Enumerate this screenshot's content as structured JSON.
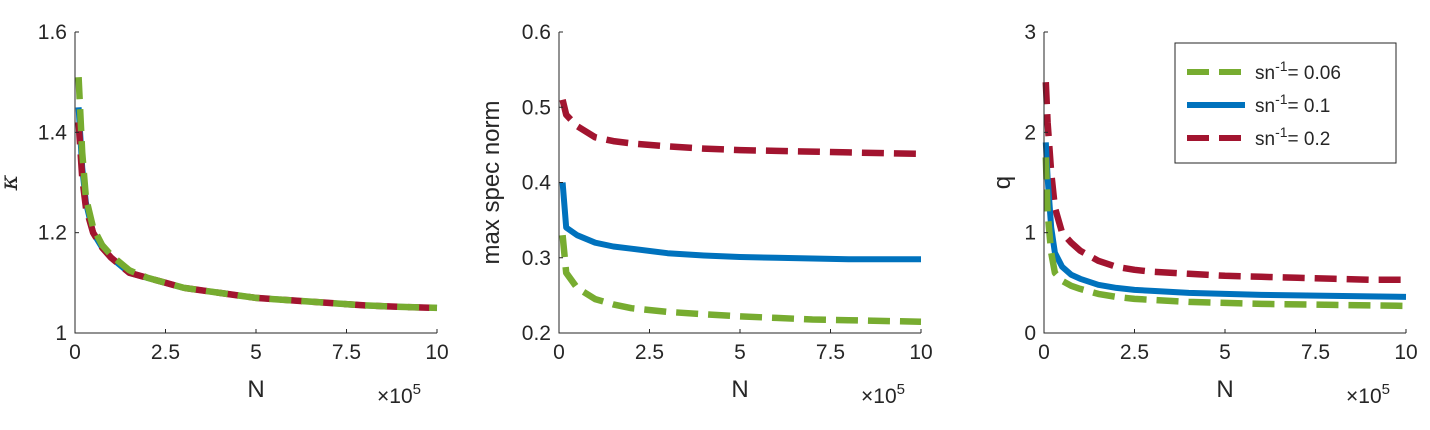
{
  "colors": {
    "green": "#77AC30",
    "blue": "#0072BD",
    "red": "#A2142F",
    "axis": "#262626"
  },
  "legend": [
    {
      "label_prefix": "sn",
      "sup": "-1",
      "label_suffix": "= 0.06",
      "color": "#77AC30",
      "style": "dashed"
    },
    {
      "label_prefix": "sn",
      "sup": "-1",
      "label_suffix": "= 0.1",
      "color": "#0072BD",
      "style": "solid"
    },
    {
      "label_prefix": "sn",
      "sup": "-1",
      "label_suffix": "= 0.2",
      "color": "#A2142F",
      "style": "dashed"
    }
  ],
  "chart_data": [
    {
      "type": "line",
      "xlabel": "N",
      "ylabel": "κ",
      "x_exponent_label": "×10",
      "x_exponent": "5",
      "xlim": [
        0,
        10
      ],
      "ylim": [
        1,
        1.6
      ],
      "xticks": [
        0,
        2.5,
        5,
        7.5,
        10
      ],
      "xtick_labels": [
        "0",
        "2.5",
        "5",
        "7.5",
        "10"
      ],
      "yticks": [
        1,
        1.2,
        1.4,
        1.6
      ],
      "ytick_labels": [
        "1",
        "1.2",
        "1.4",
        "1.6"
      ],
      "x": [
        0.1,
        0.2,
        0.3,
        0.5,
        0.75,
        1,
        1.5,
        2,
        2.5,
        3,
        4,
        5,
        6,
        7,
        8,
        9,
        10
      ],
      "series": [
        {
          "color": "#0072BD",
          "style": "solid",
          "values": [
            1.45,
            1.33,
            1.26,
            1.2,
            1.17,
            1.15,
            1.12,
            1.11,
            1.1,
            1.09,
            1.08,
            1.07,
            1.065,
            1.06,
            1.055,
            1.052,
            1.05
          ]
        },
        {
          "color": "#A2142F",
          "style": "dashed",
          "values": [
            1.42,
            1.31,
            1.25,
            1.2,
            1.17,
            1.15,
            1.12,
            1.11,
            1.1,
            1.09,
            1.08,
            1.07,
            1.065,
            1.06,
            1.055,
            1.052,
            1.05
          ]
        },
        {
          "color": "#77AC30",
          "style": "dashed",
          "values": [
            1.51,
            1.36,
            1.27,
            1.21,
            1.175,
            1.155,
            1.125,
            1.11,
            1.1,
            1.09,
            1.08,
            1.07,
            1.065,
            1.06,
            1.055,
            1.052,
            1.05
          ]
        }
      ]
    },
    {
      "type": "line",
      "xlabel": "N",
      "ylabel": "max spec norm",
      "x_exponent_label": "×10",
      "x_exponent": "5",
      "xlim": [
        0,
        10
      ],
      "ylim": [
        0.2,
        0.6
      ],
      "xticks": [
        0,
        2.5,
        5,
        7.5,
        10
      ],
      "xtick_labels": [
        "0",
        "2.5",
        "5",
        "7.5",
        "10"
      ],
      "yticks": [
        0.2,
        0.3,
        0.4,
        0.5,
        0.6
      ],
      "ytick_labels": [
        "0.2",
        "0.3",
        "0.4",
        "0.5",
        "0.6"
      ],
      "x": [
        0.1,
        0.2,
        0.5,
        1,
        1.5,
        2,
        3,
        4,
        5,
        6,
        7,
        8,
        9,
        10
      ],
      "series": [
        {
          "color": "#A2142F",
          "style": "dashed",
          "values": [
            0.51,
            0.49,
            0.475,
            0.46,
            0.455,
            0.452,
            0.448,
            0.445,
            0.443,
            0.442,
            0.441,
            0.44,
            0.439,
            0.438
          ]
        },
        {
          "color": "#0072BD",
          "style": "solid",
          "values": [
            0.4,
            0.34,
            0.33,
            0.32,
            0.315,
            0.312,
            0.306,
            0.303,
            0.301,
            0.3,
            0.299,
            0.298,
            0.298,
            0.298
          ]
        },
        {
          "color": "#77AC30",
          "style": "dashed",
          "values": [
            0.33,
            0.28,
            0.26,
            0.245,
            0.238,
            0.233,
            0.228,
            0.225,
            0.222,
            0.22,
            0.218,
            0.217,
            0.216,
            0.215
          ]
        }
      ]
    },
    {
      "type": "line",
      "xlabel": "N",
      "ylabel": "q",
      "x_exponent_label": "×10",
      "x_exponent": "5",
      "xlim": [
        0,
        10
      ],
      "ylim": [
        0,
        3
      ],
      "xticks": [
        0,
        2.5,
        5,
        7.5,
        10
      ],
      "xtick_labels": [
        "0",
        "2.5",
        "5",
        "7.5",
        "10"
      ],
      "yticks": [
        0,
        1,
        2,
        3
      ],
      "ytick_labels": [
        "0",
        "1",
        "2",
        "3"
      ],
      "x": [
        0.05,
        0.1,
        0.2,
        0.3,
        0.5,
        0.75,
        1,
        1.5,
        2,
        2.5,
        3,
        4,
        5,
        6,
        7,
        8,
        9,
        10
      ],
      "series": [
        {
          "color": "#A2142F",
          "style": "dashed",
          "values": [
            2.5,
            2.1,
            1.6,
            1.25,
            1.0,
            0.9,
            0.82,
            0.72,
            0.66,
            0.63,
            0.61,
            0.59,
            0.57,
            0.56,
            0.55,
            0.54,
            0.53,
            0.53
          ]
        },
        {
          "color": "#0072BD",
          "style": "solid",
          "values": [
            1.9,
            1.55,
            1.05,
            0.8,
            0.66,
            0.58,
            0.54,
            0.48,
            0.45,
            0.43,
            0.42,
            0.4,
            0.39,
            0.38,
            0.375,
            0.37,
            0.365,
            0.36
          ]
        },
        {
          "color": "#77AC30",
          "style": "dashed",
          "values": [
            1.75,
            1.2,
            0.8,
            0.6,
            0.52,
            0.47,
            0.44,
            0.39,
            0.36,
            0.34,
            0.33,
            0.31,
            0.3,
            0.29,
            0.285,
            0.28,
            0.275,
            0.27
          ]
        }
      ]
    }
  ]
}
